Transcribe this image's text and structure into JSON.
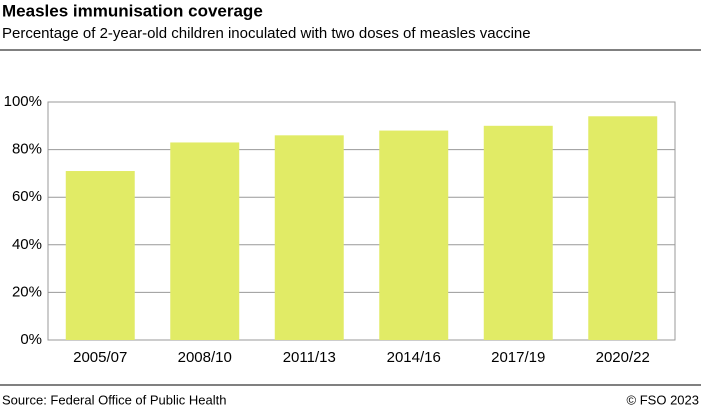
{
  "chart_data": {
    "type": "bar",
    "title": "Measles immunisation coverage",
    "subtitle": "Percentage of 2-year-old children inoculated with two doses of measles vaccine",
    "categories": [
      "2005/07",
      "2008/10",
      "2011/13",
      "2014/16",
      "2017/19",
      "2020/22"
    ],
    "values": [
      71,
      83,
      86,
      88,
      90,
      94
    ],
    "color": "#e1eb66",
    "ylim": [
      0,
      100
    ],
    "yticks": [
      {
        "value": 0,
        "label": "0%"
      },
      {
        "value": 20,
        "label": "20%"
      },
      {
        "value": 40,
        "label": "40%"
      },
      {
        "value": 60,
        "label": "60%"
      },
      {
        "value": 80,
        "label": "80%"
      },
      {
        "value": 100,
        "label": "100%"
      }
    ],
    "grid": true,
    "source": "Source: Federal Office of Public Health",
    "credit": "© FSO 2023"
  }
}
